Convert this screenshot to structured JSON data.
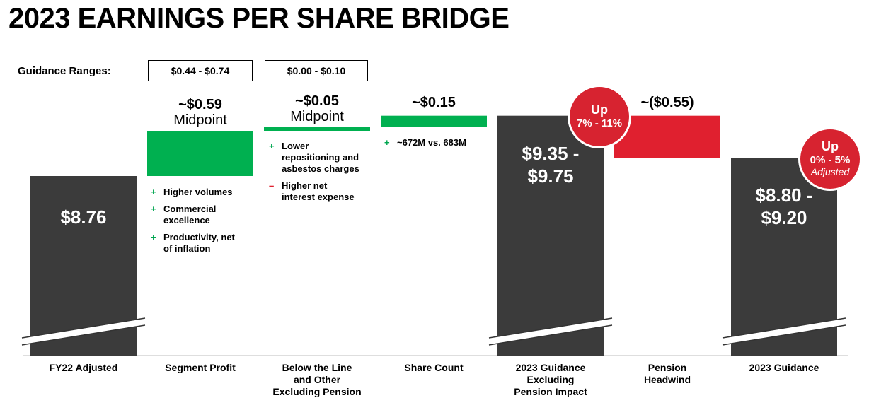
{
  "title": "2023 EARNINGS PER SHARE BRIDGE",
  "guidance_label": "Guidance Ranges:",
  "guidance_ranges": {
    "segment_profit": "$0.44 - $0.74",
    "below_the_line": "$0.00 - $0.10"
  },
  "colors": {
    "total": "#3b3b3b",
    "positive": "#00b050",
    "negative": "#e0202f",
    "badge": "#d72330"
  },
  "chart_data": {
    "type": "waterfall",
    "categories": [
      "FY22 Adjusted",
      "Segment Profit",
      "Below the Line and Other Excluding Pension",
      "Share Count",
      "2023 Guidance Excluding Pension Impact",
      "Pension Headwind",
      "2023 Guidance"
    ],
    "axis_break": true,
    "bars": [
      {
        "category": "FY22 Adjusted",
        "kind": "total",
        "value": 8.76,
        "label": "$8.76"
      },
      {
        "category": "Segment Profit",
        "kind": "delta",
        "value": 0.59,
        "label": "~$0.59",
        "sublabel": "Midpoint",
        "range": [
          0.44,
          0.74
        ]
      },
      {
        "category": "Below the Line and Other Excluding Pension",
        "kind": "delta",
        "value": 0.05,
        "label": "~$0.05",
        "sublabel": "Midpoint",
        "range": [
          0.0,
          0.1
        ]
      },
      {
        "category": "Share Count",
        "kind": "delta",
        "value": 0.15,
        "label": "~$0.15"
      },
      {
        "category": "2023 Guidance Excluding Pension Impact",
        "kind": "total",
        "range": [
          9.35,
          9.75
        ],
        "label_line1": "$9.35 -",
        "label_line2": "$9.75"
      },
      {
        "category": "Pension Headwind",
        "kind": "delta",
        "value": -0.55,
        "label": "~($0.55)"
      },
      {
        "category": "2023 Guidance",
        "kind": "total",
        "range": [
          8.8,
          9.2
        ],
        "label_line1": "$8.80 -",
        "label_line2": "$9.20"
      }
    ],
    "x_labels": [
      [
        "FY22 Adjusted"
      ],
      [
        "Segment Profit"
      ],
      [
        "Below the Line",
        "and Other",
        "Excluding Pension"
      ],
      [
        "Share Count"
      ],
      [
        "2023 Guidance",
        "Excluding",
        "Pension Impact"
      ],
      [
        "Pension",
        "Headwind"
      ],
      [
        "2023 Guidance"
      ]
    ],
    "notes": {
      "segment_profit": [
        {
          "sign": "+",
          "text": [
            "Higher volumes"
          ]
        },
        {
          "sign": "+",
          "text": [
            "Commercial",
            "excellence"
          ]
        },
        {
          "sign": "+",
          "text": [
            "Productivity, net",
            "of inflation"
          ]
        }
      ],
      "below_the_line": [
        {
          "sign": "+",
          "text": [
            "Lower",
            "repositioning and",
            "asbestos charges"
          ]
        },
        {
          "sign": "–",
          "text": [
            "Higher net",
            "interest expense"
          ]
        }
      ],
      "share_count": [
        {
          "sign": "+",
          "text": [
            "~672M vs. 683M"
          ]
        }
      ]
    },
    "badges": [
      {
        "line1": "Up",
        "line2": "7% - 11%"
      },
      {
        "line1": "Up",
        "line2": "0% - 5%",
        "line3": "Adjusted"
      }
    ]
  }
}
